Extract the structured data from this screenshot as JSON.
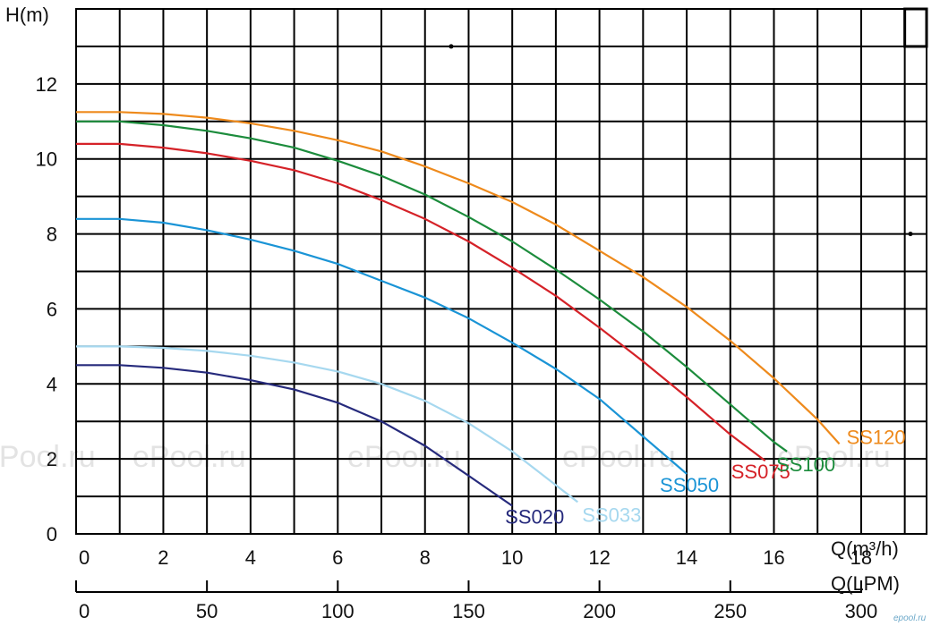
{
  "chart_data": {
    "type": "line",
    "ylabel": "H(m)",
    "xlabel": "Q(m³/h)",
    "xlabel_secondary": "Q(LPM)",
    "xlim": [
      0,
      19.5
    ],
    "ylim": [
      0,
      14
    ],
    "x_ticks": [
      "0",
      "2",
      "4",
      "6",
      "8",
      "10",
      "12",
      "14",
      "16",
      "18"
    ],
    "y_ticks": [
      "0",
      "2",
      "4",
      "6",
      "8",
      "10",
      "12"
    ],
    "secondary_x_ticks": [
      "0",
      "50",
      "100",
      "150",
      "200",
      "250",
      "300"
    ],
    "grid": true,
    "series": [
      {
        "name": "SS020",
        "color": "#262a7c",
        "x": [
          0,
          1,
          2,
          3,
          4,
          5,
          6,
          7,
          8,
          9,
          10
        ],
        "y": [
          4.5,
          4.5,
          4.43,
          4.3,
          4.1,
          3.85,
          3.5,
          3.0,
          2.35,
          1.55,
          0.75
        ]
      },
      {
        "name": "SS033",
        "color": "#a6d8ef",
        "x": [
          0,
          1,
          2,
          3,
          4,
          5,
          6,
          7,
          8,
          9,
          10,
          11,
          11.5
        ],
        "y": [
          5.0,
          5.0,
          4.96,
          4.88,
          4.75,
          4.57,
          4.33,
          4.0,
          3.55,
          2.95,
          2.2,
          1.3,
          0.85
        ]
      },
      {
        "name": "SS050",
        "color": "#1a94d6",
        "x": [
          0,
          1,
          2,
          3,
          4,
          5,
          6,
          7,
          8,
          9,
          10,
          11,
          12,
          13,
          14
        ],
        "y": [
          8.4,
          8.4,
          8.3,
          8.1,
          7.85,
          7.55,
          7.2,
          6.75,
          6.3,
          5.75,
          5.1,
          4.4,
          3.6,
          2.6,
          1.6
        ]
      },
      {
        "name": "SS075",
        "color": "#d52228",
        "x": [
          0,
          1,
          2,
          3,
          4,
          5,
          6,
          7,
          8,
          9,
          10,
          11,
          12,
          13,
          14,
          15,
          15.8
        ],
        "y": [
          10.4,
          10.4,
          10.3,
          10.15,
          9.95,
          9.7,
          9.35,
          8.9,
          8.4,
          7.8,
          7.1,
          6.35,
          5.5,
          4.6,
          3.65,
          2.65,
          1.95
        ]
      },
      {
        "name": "SS100",
        "color": "#1c8c3c",
        "x": [
          0,
          1,
          2,
          3,
          4,
          5,
          6,
          7,
          8,
          9,
          10,
          11,
          12,
          13,
          14,
          15,
          16,
          16.3
        ],
        "y": [
          11.0,
          11.0,
          10.9,
          10.75,
          10.55,
          10.3,
          9.95,
          9.55,
          9.05,
          8.45,
          7.8,
          7.05,
          6.25,
          5.4,
          4.45,
          3.45,
          2.45,
          2.2
        ]
      },
      {
        "name": "SS120",
        "color": "#ee8a1c",
        "x": [
          0,
          1,
          2,
          3,
          4,
          5,
          6,
          7,
          8,
          9,
          10,
          11,
          12,
          13,
          14,
          15,
          16,
          17,
          17.5
        ],
        "y": [
          11.25,
          11.25,
          11.2,
          11.1,
          10.95,
          10.75,
          10.5,
          10.2,
          9.8,
          9.35,
          8.85,
          8.25,
          7.55,
          6.85,
          6.05,
          5.15,
          4.15,
          3.05,
          2.4
        ]
      }
    ],
    "series_labels": [
      {
        "text": "SS020",
        "series": 0
      },
      {
        "text": "SS033",
        "series": 1
      },
      {
        "text": "SS050",
        "series": 2
      },
      {
        "text": "SS075",
        "series": 3
      },
      {
        "text": "SS100",
        "series": 4
      },
      {
        "text": "SS120",
        "series": 5
      }
    ]
  },
  "watermark": "ePool.ru",
  "logo_text": "epool.ru"
}
